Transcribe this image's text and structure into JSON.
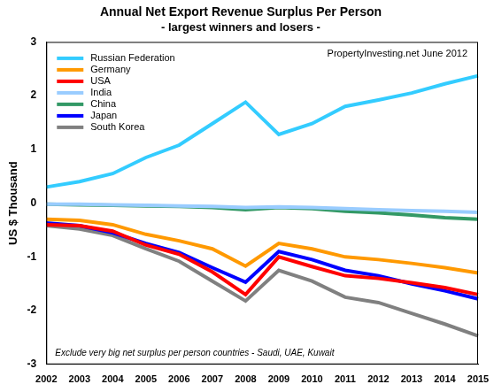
{
  "chart_data": {
    "type": "line",
    "title": "Annual Net Export Revenue Surplus Per Person",
    "subtitle": "- largest winners and losers -",
    "y_label": "US $ Thousand",
    "annotations": [
      "PropertyInvesting.net June 2012",
      "Exclude very big net surplus per person countries - Saudi, UAE, Kuwait"
    ],
    "categories": [
      "2002",
      "2003",
      "2004",
      "2005",
      "2006",
      "2007",
      "2008",
      "2009",
      "2010",
      "2011",
      "2012",
      "2013",
      "2014",
      "2015"
    ],
    "series": [
      {
        "name": "Russian Federation",
        "color": "#33ccff",
        "values": [
          0.3,
          0.4,
          0.55,
          0.85,
          1.08,
          1.48,
          1.88,
          1.28,
          1.48,
          1.8,
          1.92,
          2.05,
          2.22,
          2.37
        ]
      },
      {
        "name": "Germany",
        "color": "#ff9900",
        "values": [
          -0.3,
          -0.32,
          -0.4,
          -0.58,
          -0.7,
          -0.85,
          -1.17,
          -0.75,
          -0.85,
          -1.0,
          -1.05,
          -1.12,
          -1.2,
          -1.3
        ]
      },
      {
        "name": "USA",
        "color": "#ff0000",
        "values": [
          -0.4,
          -0.42,
          -0.52,
          -0.78,
          -0.95,
          -1.28,
          -1.7,
          -1.0,
          -1.18,
          -1.35,
          -1.4,
          -1.48,
          -1.57,
          -1.7
        ]
      },
      {
        "name": "India",
        "color": "#99ccff",
        "values": [
          -0.02,
          -0.02,
          -0.03,
          -0.04,
          -0.05,
          -0.06,
          -0.08,
          -0.07,
          -0.08,
          -0.1,
          -0.12,
          -0.14,
          -0.15,
          -0.17
        ]
      },
      {
        "name": "China",
        "color": "#339966",
        "values": [
          -0.02,
          -0.03,
          -0.04,
          -0.05,
          -0.06,
          -0.08,
          -0.12,
          -0.08,
          -0.1,
          -0.15,
          -0.18,
          -0.22,
          -0.27,
          -0.3
        ]
      },
      {
        "name": "Japan",
        "color": "#0000ff",
        "values": [
          -0.37,
          -0.42,
          -0.55,
          -0.75,
          -0.92,
          -1.2,
          -1.47,
          -0.9,
          -1.05,
          -1.25,
          -1.35,
          -1.5,
          -1.63,
          -1.78
        ]
      },
      {
        "name": "South Korea",
        "color": "#808080",
        "values": [
          -0.42,
          -0.48,
          -0.6,
          -0.85,
          -1.08,
          -1.45,
          -1.82,
          -1.25,
          -1.45,
          -1.75,
          -1.85,
          -2.05,
          -2.25,
          -2.47
        ]
      }
    ],
    "ylim": [
      -3,
      3
    ],
    "yticks": [
      -3,
      -2,
      -1,
      0,
      1,
      2,
      3
    ],
    "grid": false,
    "legend": "top-left"
  }
}
